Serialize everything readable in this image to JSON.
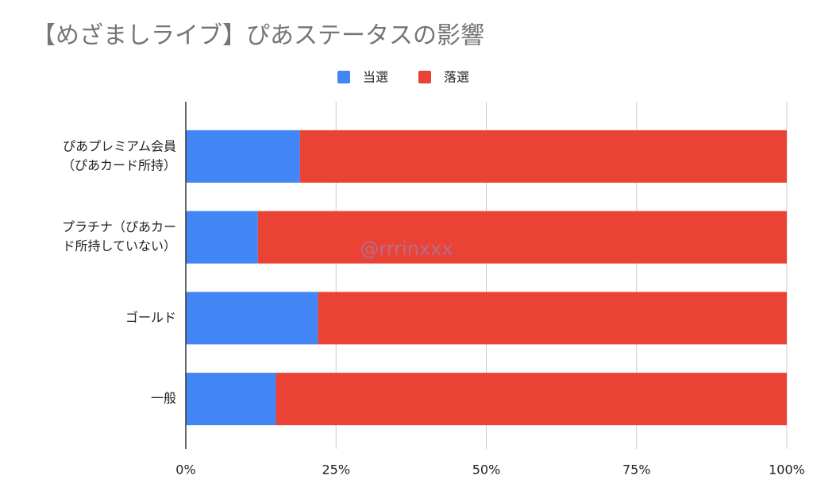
{
  "chart_data": {
    "type": "stacked_bar_horizontal",
    "title": "【めざましライブ】ぴあステータスの影響",
    "categories": [
      [
        "ぴあプレミアム会員",
        "（ぴあカード所持）"
      ],
      [
        "プラチナ（ぴあカー",
        "ド所持していない）"
      ],
      [
        "ゴールド"
      ],
      [
        "一般"
      ]
    ],
    "series": [
      {
        "name": "当選",
        "color": "#4285f4",
        "values": [
          19,
          12,
          22,
          15
        ]
      },
      {
        "name": "落選",
        "color": "#ea4335",
        "values": [
          81,
          88,
          78,
          85
        ]
      }
    ],
    "xlim": [
      0,
      100
    ],
    "xticks": [
      {
        "value": 0,
        "label": "0%"
      },
      {
        "value": 25,
        "label": "25%"
      },
      {
        "value": 50,
        "label": "50%"
      },
      {
        "value": 75,
        "label": "75%"
      },
      {
        "value": 100,
        "label": "100%"
      }
    ],
    "grid": true,
    "watermark": "@rrrinxxx"
  }
}
